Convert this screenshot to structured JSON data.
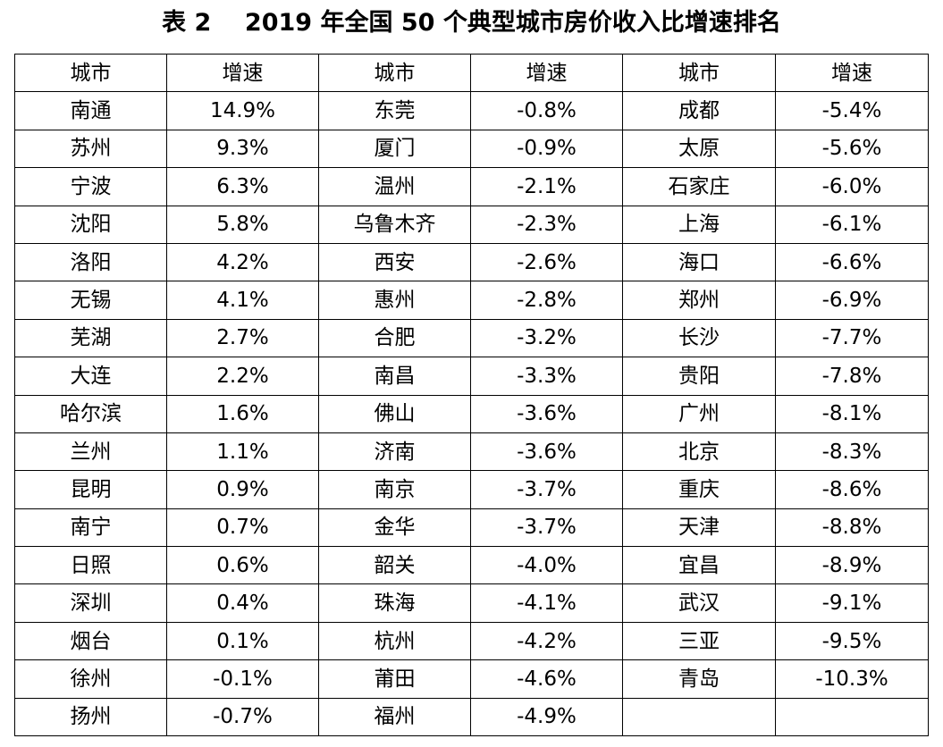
{
  "title": "表 2    2019 年全国 50 个典型城市房价收入比增速排名",
  "header": [
    "城市",
    "增速",
    "城市",
    "增速",
    "城市",
    "增速"
  ],
  "rows": [
    [
      [
        "南通",
        "14.9%"
      ],
      [
        "东莞",
        "-0.8%"
      ],
      [
        "成都",
        "-5.4%"
      ]
    ],
    [
      [
        "苏州",
        "9.3%"
      ],
      [
        "厦门",
        "-0.9%"
      ],
      [
        "太原",
        "-5.6%"
      ]
    ],
    [
      [
        "宁波",
        "6.3%"
      ],
      [
        "温州",
        "-2.1%"
      ],
      [
        "石家庄",
        "-6.0%"
      ]
    ],
    [
      [
        "沈阳",
        "5.8%"
      ],
      [
        "乌鲁木齐",
        "-2.3%"
      ],
      [
        "上海",
        "-6.1%"
      ]
    ],
    [
      [
        "洛阳",
        "4.2%"
      ],
      [
        "西安",
        "-2.6%"
      ],
      [
        "海口",
        "-6.6%"
      ]
    ],
    [
      [
        "无锡",
        "4.1%"
      ],
      [
        "惠州",
        "-2.8%"
      ],
      [
        "郑州",
        "-6.9%"
      ]
    ],
    [
      [
        "芜湖",
        "2.7%"
      ],
      [
        "合肥",
        "-3.2%"
      ],
      [
        "长沙",
        "-7.7%"
      ]
    ],
    [
      [
        "大连",
        "2.2%"
      ],
      [
        "南昌",
        "-3.3%"
      ],
      [
        "贵阳",
        "-7.8%"
      ]
    ],
    [
      [
        "哈尔滨",
        "1.6%"
      ],
      [
        "佛山",
        "-3.6%"
      ],
      [
        "广州",
        "-8.1%"
      ]
    ],
    [
      [
        "兰州",
        "1.1%"
      ],
      [
        "济南",
        "-3.6%"
      ],
      [
        "北京",
        "-8.3%"
      ]
    ],
    [
      [
        "昆明",
        "0.9%"
      ],
      [
        "南京",
        "-3.7%"
      ],
      [
        "重庆",
        "-8.6%"
      ]
    ],
    [
      [
        "南宁",
        "0.7%"
      ],
      [
        "金华",
        "-3.7%"
      ],
      [
        "天津",
        "-8.8%"
      ]
    ],
    [
      [
        "日照",
        "0.6%"
      ],
      [
        "韶关",
        "-4.0%"
      ],
      [
        "宜昌",
        "-8.9%"
      ]
    ],
    [
      [
        "深圳",
        "0.4%"
      ],
      [
        "珠海",
        "-4.1%"
      ],
      [
        "武汉",
        "-9.1%"
      ]
    ],
    [
      [
        "烟台",
        "0.1%"
      ],
      [
        "杭州",
        "-4.2%"
      ],
      [
        "三亚",
        "-9.5%"
      ]
    ],
    [
      [
        "徐州",
        "-0.1%"
      ],
      [
        "莆田",
        "-4.6%"
      ],
      [
        "青岛",
        "-10.3%"
      ]
    ],
    [
      [
        "扬州",
        "-0.7%"
      ],
      [
        "福州",
        "-4.9%"
      ],
      [
        "",
        ""
      ]
    ]
  ]
}
